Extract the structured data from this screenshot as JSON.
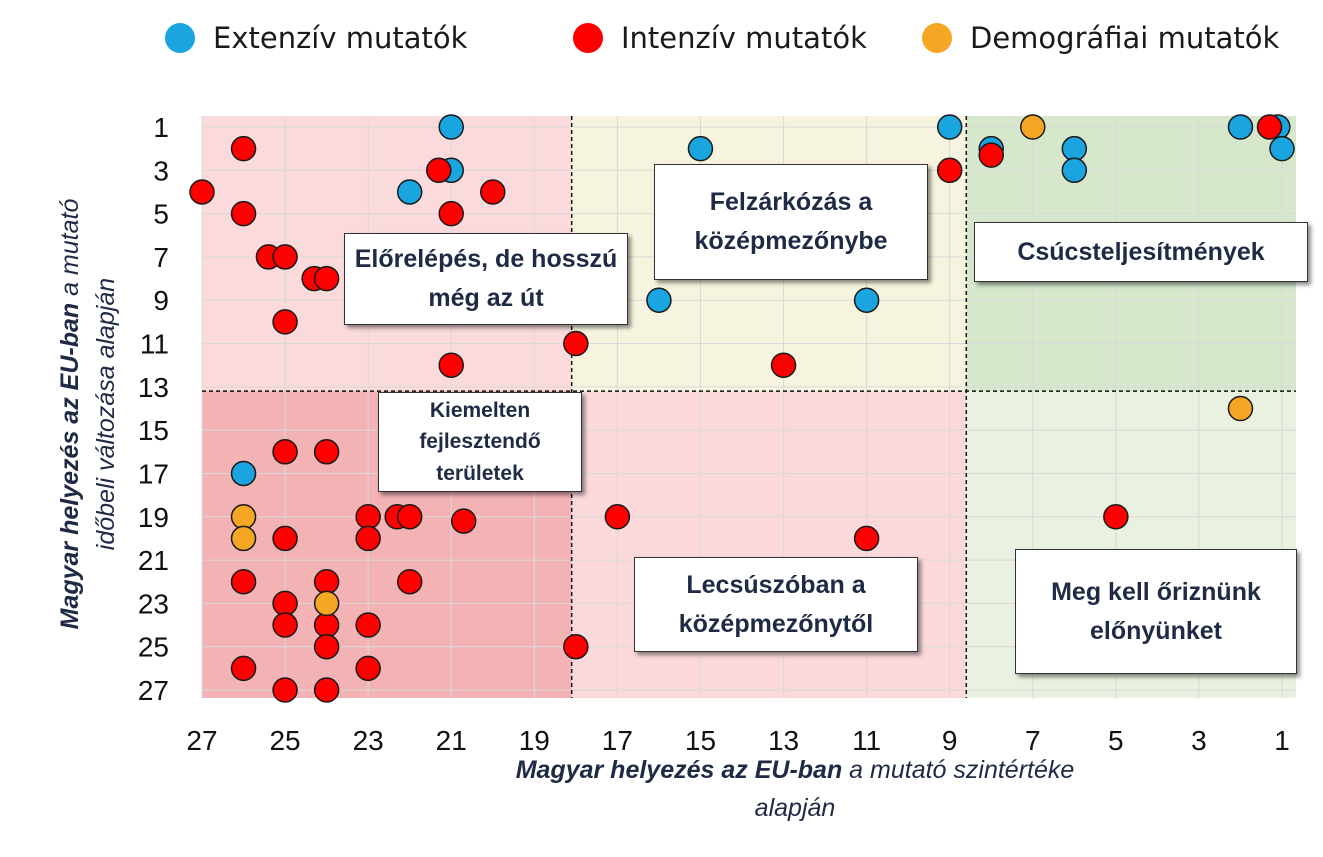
{
  "chart_data": {
    "type": "scatter",
    "xlabel_bold": "Magyar helyezés az EU-ban",
    "xlabel_rest": "a mutató szintértéke alapján",
    "ylabel_bold": "Magyar helyezés az EU-ban",
    "ylabel_rest": "a mutató időbeli változása alapján",
    "x_reversed": true,
    "y_reversed": true,
    "xlim": [
      0.6,
      27.2
    ],
    "ylim": [
      0.2,
      27.5
    ],
    "x_ticks": [
      "27",
      "25",
      "23",
      "21",
      "19",
      "17",
      "15",
      "13",
      "11",
      "9",
      "7",
      "5",
      "3",
      "1"
    ],
    "y_ticks": [
      "1",
      "3",
      "5",
      "7",
      "9",
      "11",
      "13",
      "15",
      "17",
      "19",
      "21",
      "23",
      "25",
      "27"
    ],
    "grid": true,
    "legend_position": "top",
    "threshold_x": 8.6,
    "threshold_x2": 18.1,
    "threshold_y": 13.2,
    "series": [
      {
        "name": "Extenzív mutatók",
        "color": "#1aa4e0",
        "points": [
          [
            21,
            1
          ],
          [
            21,
            3
          ],
          [
            22,
            4
          ],
          [
            15,
            2
          ],
          [
            16,
            9
          ],
          [
            11,
            9
          ],
          [
            9,
            1
          ],
          [
            8,
            2
          ],
          [
            6,
            2
          ],
          [
            6,
            3
          ],
          [
            2,
            1
          ],
          [
            1.1,
            1
          ],
          [
            1,
            2
          ],
          [
            26,
            17
          ]
        ]
      },
      {
        "name": "Intenzív mutatók",
        "color": "#ff0000",
        "points": [
          [
            26,
            2
          ],
          [
            27,
            4
          ],
          [
            26,
            5
          ],
          [
            25.4,
            7
          ],
          [
            25,
            7
          ],
          [
            24.3,
            8
          ],
          [
            24,
            8
          ],
          [
            25,
            10
          ],
          [
            21.3,
            3
          ],
          [
            20,
            4
          ],
          [
            21,
            5
          ],
          [
            21,
            12
          ],
          [
            18,
            11
          ],
          [
            13,
            12
          ],
          [
            9,
            3
          ],
          [
            8,
            2.3
          ],
          [
            1.3,
            1
          ],
          [
            25,
            16
          ],
          [
            24,
            16
          ],
          [
            23,
            19
          ],
          [
            22.3,
            19
          ],
          [
            22,
            19
          ],
          [
            20.7,
            19.2
          ],
          [
            17,
            19
          ],
          [
            26,
            22
          ],
          [
            25,
            20
          ],
          [
            23,
            20
          ],
          [
            24,
            22
          ],
          [
            22,
            22
          ],
          [
            25,
            23
          ],
          [
            25,
            24
          ],
          [
            24,
            24
          ],
          [
            23,
            24
          ],
          [
            24,
            25
          ],
          [
            26,
            26
          ],
          [
            23,
            26
          ],
          [
            25,
            27
          ],
          [
            24,
            27
          ],
          [
            18,
            25
          ],
          [
            11,
            20
          ],
          [
            5,
            19
          ]
        ]
      },
      {
        "name": "Demográfiai mutatók",
        "color": "#f5a623",
        "points": [
          [
            7,
            1
          ],
          [
            2,
            14
          ],
          [
            26,
            19
          ],
          [
            26,
            20
          ],
          [
            24,
            23
          ]
        ]
      }
    ],
    "quadrant_labels": {
      "top_left": "Előrelépés, de hosszú még az út",
      "top_middle": "Felzárkózás a középmezőnybe",
      "top_right": "Csúcsteljesítmények",
      "bottom_left": "Kiemelten fejlesztendő területek",
      "bottom_middle": "Lecsúszóban a középmezőnytől",
      "bottom_right": "Meg kell őriznünk előnyünket"
    },
    "zone_colors": {
      "top_left": "#fadadb",
      "top_middle": "#f6f4de",
      "top_right": "#d6e7cc",
      "bottom_left": "#f3b2b4",
      "bottom_middle": "#fbd9da",
      "bottom_right": "#e9f1e0"
    }
  }
}
